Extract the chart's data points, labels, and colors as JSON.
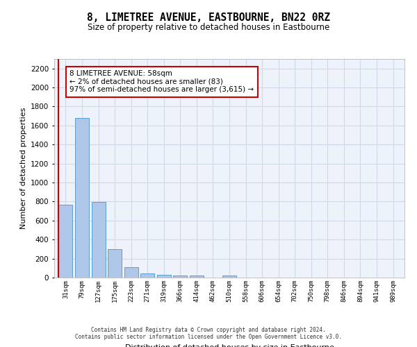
{
  "title": "8, LIMETREE AVENUE, EASTBOURNE, BN22 0RZ",
  "subtitle": "Size of property relative to detached houses in Eastbourne",
  "xlabel": "Distribution of detached houses by size in Eastbourne",
  "ylabel": "Number of detached properties",
  "footer_line1": "Contains HM Land Registry data © Crown copyright and database right 2024.",
  "footer_line2": "Contains public sector information licensed under the Open Government Licence v3.0.",
  "bins": [
    "31sqm",
    "79sqm",
    "127sqm",
    "175sqm",
    "223sqm",
    "271sqm",
    "319sqm",
    "366sqm",
    "414sqm",
    "462sqm",
    "510sqm",
    "558sqm",
    "606sqm",
    "654sqm",
    "702sqm",
    "750sqm",
    "798sqm",
    "846sqm",
    "894sqm",
    "941sqm",
    "989sqm"
  ],
  "bar_heights": [
    770,
    1680,
    795,
    300,
    110,
    45,
    32,
    25,
    25,
    0,
    22,
    0,
    0,
    0,
    0,
    0,
    0,
    0,
    0,
    0,
    0
  ],
  "bar_color": "#aec6e8",
  "bar_edge_color": "#5a9fd4",
  "ylim": [
    0,
    2300
  ],
  "yticks": [
    0,
    200,
    400,
    600,
    800,
    1000,
    1200,
    1400,
    1600,
    1800,
    2000,
    2200
  ],
  "vline_x": -0.45,
  "vline_color": "#cc0000",
  "annotation_text": "8 LIMETREE AVENUE: 58sqm\n← 2% of detached houses are smaller (83)\n97% of semi-detached houses are larger (3,615) →",
  "annotation_box_color": "#cc0000",
  "grid_color": "#d0d8e8",
  "background_color": "#eef2fa"
}
